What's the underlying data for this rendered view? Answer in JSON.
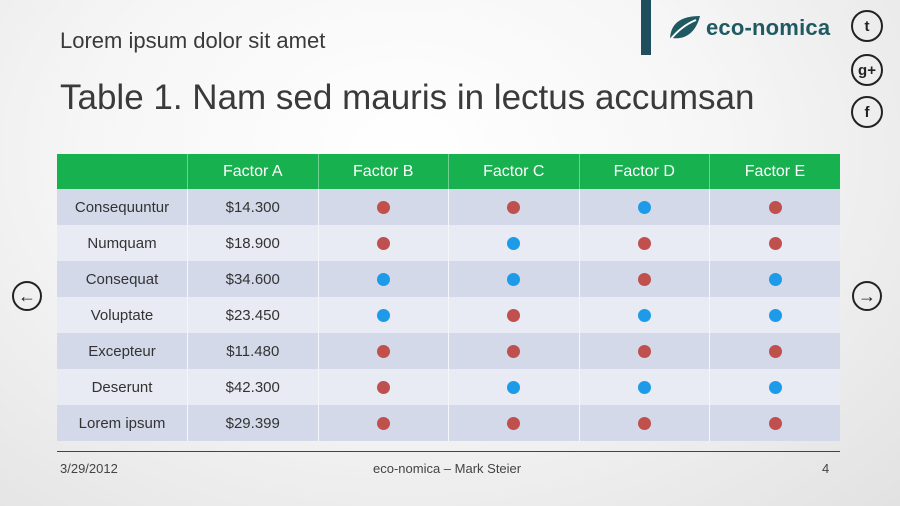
{
  "header": {
    "subtitle": "Lorem ipsum dolor sit amet",
    "title": "Table 1. Nam sed mauris in lectus accumsan",
    "brand_name": "eco-nomica"
  },
  "social": {
    "twitter_glyph": "t",
    "googleplus_glyph": "g+",
    "facebook_glyph": "f"
  },
  "nav": {
    "prev_glyph": "←",
    "next_glyph": "→"
  },
  "table": {
    "headers": [
      "",
      "Factor A",
      "Factor B",
      "Factor C",
      "Factor D",
      "Factor E"
    ],
    "rows": [
      {
        "label": "Consequuntur",
        "value": "$14.300",
        "factors": [
          "red",
          "red",
          "blue",
          "red"
        ]
      },
      {
        "label": "Numquam",
        "value": "$18.900",
        "factors": [
          "red",
          "blue",
          "red",
          "red"
        ]
      },
      {
        "label": "Consequat",
        "value": "$34.600",
        "factors": [
          "blue",
          "blue",
          "red",
          "blue"
        ]
      },
      {
        "label": "Voluptate",
        "value": "$23.450",
        "factors": [
          "blue",
          "red",
          "blue",
          "blue"
        ]
      },
      {
        "label": "Excepteur",
        "value": "$11.480",
        "factors": [
          "red",
          "red",
          "red",
          "red"
        ]
      },
      {
        "label": "Deserunt",
        "value": "$42.300",
        "factors": [
          "red",
          "blue",
          "blue",
          "blue"
        ]
      },
      {
        "label": "Lorem ipsum",
        "value": "$29.399",
        "factors": [
          "red",
          "red",
          "red",
          "red"
        ]
      }
    ]
  },
  "footer": {
    "date": "3/29/2012",
    "center": "eco-nomica – Mark Steier",
    "page": "4"
  },
  "colors": {
    "header_green": "#18b14f",
    "red_dot": "#c0504d",
    "blue_dot": "#1e9be8",
    "brand": "#1f5a63"
  }
}
